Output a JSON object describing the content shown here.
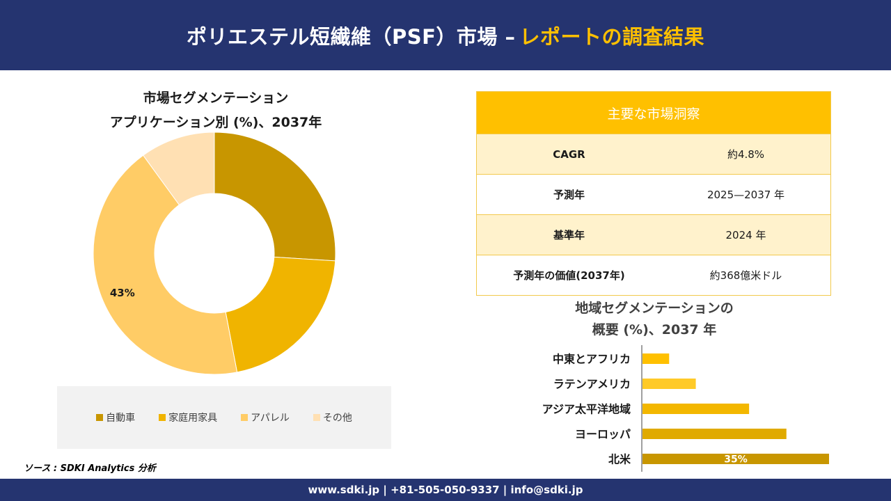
{
  "header": {
    "title_main": "ポリエステル短繊維（PSF）市場 –",
    "title_accent": "レポートの調査結果"
  },
  "donut": {
    "title_line1": "市場セグメンテーション",
    "title_line2": "アプリケーション別 (%)、2037年"
  },
  "insights": {
    "title": "主要な市場洞察",
    "rows": [
      {
        "label": "CAGR",
        "value": "約4.8%"
      },
      {
        "label": "予測年",
        "value": "2025—2037 年"
      },
      {
        "label": "基準年",
        "value": "2024 年"
      },
      {
        "label": "予測年の価値(2037年)",
        "value": "約368億米ドル"
      }
    ]
  },
  "region": {
    "title_line1": "地域セグメンテーションの",
    "title_line2": "概要 (%)、2037 年"
  },
  "source": "ソース : SDKI Analytics 分析",
  "footer": "www.sdki.jp | +81-505-050-9337 | info@sdki.jp",
  "colors": {
    "navy": "#253470",
    "gold": "#ffc000",
    "segment1": "#c89600",
    "segment2": "#f0b400",
    "segment3": "#ffcc66",
    "segment4": "#ffe0b3"
  },
  "chart_data": [
    {
      "type": "pie",
      "variant": "donut",
      "categories": [
        "自動車",
        "家庭用家具",
        "アパレル",
        "その他"
      ],
      "values": [
        26,
        21,
        43,
        10
      ],
      "data_labels": [
        "",
        "",
        "43%",
        ""
      ],
      "colors": [
        "#c89600",
        "#f0b400",
        "#ffcc66",
        "#ffe0b3"
      ],
      "legend": "bottom"
    },
    {
      "type": "bar",
      "orientation": "horizontal",
      "categories": [
        "中東とアフリカ",
        "ラテンアメリカ",
        "アジア太平洋地域",
        "ヨーロッパ",
        "北米"
      ],
      "values": [
        5,
        10,
        20,
        27,
        35
      ],
      "data_labels": [
        "",
        "",
        "",
        "",
        "35%"
      ],
      "colors": [
        "#ffc000",
        "#ffca28",
        "#f3b700",
        "#e0aa00",
        "#c89600"
      ],
      "xlim": [
        0,
        35
      ]
    }
  ]
}
